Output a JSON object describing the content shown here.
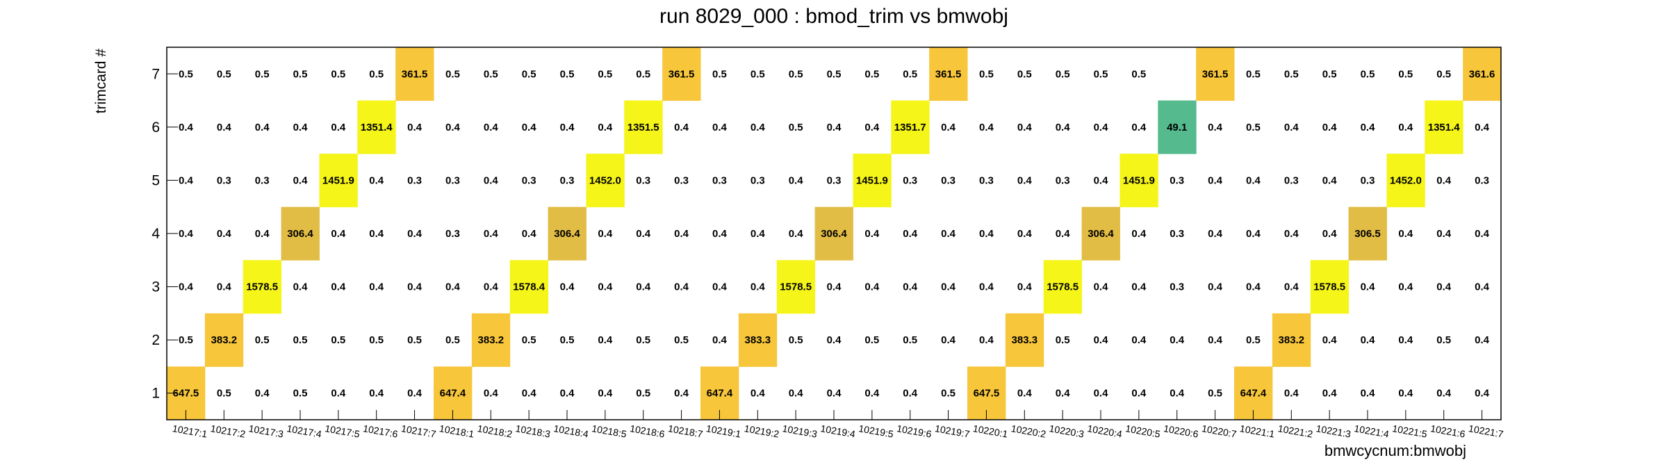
{
  "chart_data": {
    "type": "heatmap",
    "title": "run 8029_000 : bmod_trim vs bmwobj",
    "xlabel": "bmwcycnum:bmwobj",
    "ylabel": "trimcard #",
    "categories": [
      "10217:1",
      "10217:2",
      "10217:3",
      "10217:4",
      "10217:5",
      "10217:6",
      "10217:7",
      "10218:1",
      "10218:2",
      "10218:3",
      "10218:4",
      "10218:5",
      "10218:6",
      "10218:7",
      "10219:1",
      "10219:2",
      "10219:3",
      "10219:4",
      "10219:5",
      "10219:6",
      "10219:7",
      "10220:1",
      "10220:2",
      "10220:3",
      "10220:4",
      "10220:5",
      "10220:6",
      "10220:7",
      "10221:1",
      "10221:2",
      "10221:3",
      "10221:4",
      "10221:5",
      "10221:6",
      "10221:7"
    ],
    "y_categories": [
      "1",
      "2",
      "3",
      "4",
      "5",
      "6",
      "7"
    ],
    "rows": [
      [
        "647.5",
        "0.5",
        "0.4",
        "0.5",
        "0.4",
        "0.4",
        "0.4",
        "647.4",
        "0.4",
        "0.4",
        "0.4",
        "0.4",
        "0.5",
        "0.4",
        "647.4",
        "0.4",
        "0.4",
        "0.4",
        "0.4",
        "0.4",
        "0.5",
        "647.5",
        "0.4",
        "0.4",
        "0.4",
        "0.4",
        "0.4",
        "0.5",
        "647.4",
        "0.4",
        "0.4",
        "0.4",
        "0.4",
        "0.4",
        "0.4"
      ],
      [
        "0.5",
        "383.2",
        "0.5",
        "0.5",
        "0.5",
        "0.5",
        "0.5",
        "0.5",
        "383.2",
        "0.5",
        "0.5",
        "0.4",
        "0.5",
        "0.5",
        "0.4",
        "383.3",
        "0.5",
        "0.4",
        "0.5",
        "0.5",
        "0.4",
        "0.4",
        "383.3",
        "0.5",
        "0.4",
        "0.4",
        "0.4",
        "0.4",
        "0.5",
        "383.2",
        "0.4",
        "0.4",
        "0.4",
        "0.5",
        "0.4"
      ],
      [
        "0.4",
        "0.4",
        "1578.5",
        "0.4",
        "0.4",
        "0.4",
        "0.4",
        "0.4",
        "0.4",
        "1578.4",
        "0.4",
        "0.4",
        "0.4",
        "0.4",
        "0.4",
        "0.4",
        "1578.5",
        "0.4",
        "0.4",
        "0.4",
        "0.4",
        "0.4",
        "0.4",
        "1578.5",
        "0.4",
        "0.4",
        "0.3",
        "0.4",
        "0.4",
        "0.4",
        "1578.5",
        "0.4",
        "0.4",
        "0.4",
        "0.4"
      ],
      [
        "0.4",
        "0.4",
        "0.4",
        "306.4",
        "0.4",
        "0.4",
        "0.4",
        "0.3",
        "0.4",
        "0.4",
        "306.4",
        "0.4",
        "0.4",
        "0.4",
        "0.4",
        "0.4",
        "0.4",
        "306.4",
        "0.4",
        "0.4",
        "0.4",
        "0.4",
        "0.4",
        "0.4",
        "306.4",
        "0.4",
        "0.3",
        "0.4",
        "0.4",
        "0.4",
        "0.4",
        "306.5",
        "0.4",
        "0.4",
        "0.4"
      ],
      [
        "0.4",
        "0.3",
        "0.3",
        "0.4",
        "1451.9",
        "0.4",
        "0.3",
        "0.3",
        "0.4",
        "0.3",
        "0.3",
        "1452.0",
        "0.3",
        "0.3",
        "0.3",
        "0.3",
        "0.4",
        "0.3",
        "1451.9",
        "0.3",
        "0.3",
        "0.3",
        "0.4",
        "0.3",
        "0.4",
        "1451.9",
        "0.3",
        "0.4",
        "0.4",
        "0.3",
        "0.4",
        "0.3",
        "1452.0",
        "0.4",
        "0.3"
      ],
      [
        "0.4",
        "0.4",
        "0.4",
        "0.4",
        "0.4",
        "1351.4",
        "0.4",
        "0.4",
        "0.4",
        "0.4",
        "0.4",
        "0.4",
        "1351.5",
        "0.4",
        "0.4",
        "0.4",
        "0.5",
        "0.4",
        "0.4",
        "1351.7",
        "0.4",
        "0.4",
        "0.4",
        "0.4",
        "0.4",
        "0.4",
        "49.1",
        "0.4",
        "0.5",
        "0.4",
        "0.4",
        "0.4",
        "0.4",
        "1351.4",
        "0.4"
      ],
      [
        "0.5",
        "0.5",
        "0.5",
        "0.5",
        "0.5",
        "0.5",
        "361.5",
        "0.5",
        "0.5",
        "0.5",
        "0.5",
        "0.5",
        "0.5",
        "361.5",
        "0.5",
        "0.5",
        "0.5",
        "0.5",
        "0.5",
        "0.5",
        "361.5",
        "0.5",
        "0.5",
        "0.5",
        "0.5",
        "0.5",
        "",
        "361.5",
        "0.5",
        "0.5",
        "0.5",
        "0.5",
        "0.5",
        "0.5",
        "361.6"
      ]
    ],
    "grid": false,
    "colors": {
      "high": "#f5f51a",
      "mid_high": "#f7c63b",
      "mid": "#e2bd45",
      "low": "#55bb8f"
    }
  }
}
